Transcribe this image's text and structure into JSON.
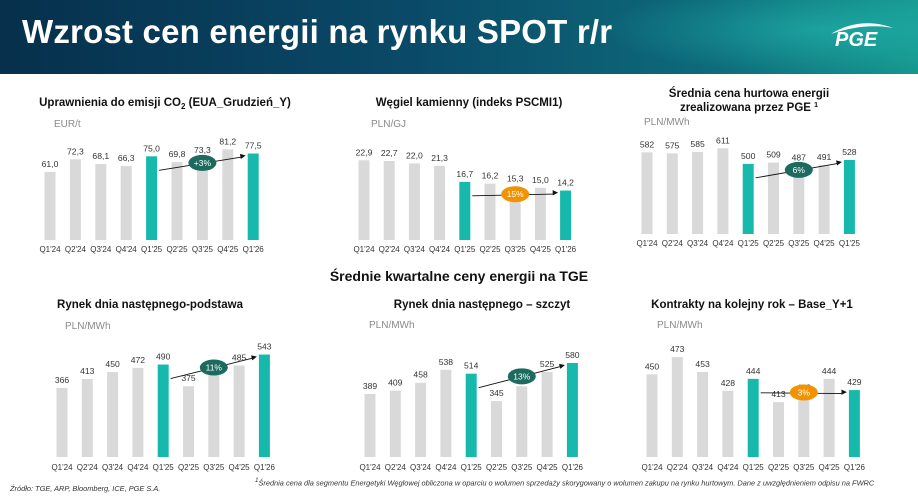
{
  "header": {
    "title": "Wzrost cen energii na rynku SPOT r/r",
    "logo_text": "PGE"
  },
  "colors": {
    "bar_gray": "#d9d9d9",
    "bar_teal": "#17b9ad",
    "badge_green": "#1d6b5f",
    "badge_orange": "#f39200"
  },
  "section_title": "Średnie kwartalne ceny energii na TGE",
  "footer": {
    "source": "Źródło: TGE, ARP, Bloomberg, ICE, PGE S.A.",
    "footnote_mark": "1",
    "footnote_text": "Średnia cena dla segmentu Energetyki Węglowej obliczona w oparciu o wolumen sprzedaży skorygowany o wolumen zakupu na rynku hurtowym. Dane z uwzględnieniem odpisu na FWRC"
  },
  "chart_data": [
    {
      "id": "co2",
      "type": "bar",
      "title": "Uprawnienia do emisji CO",
      "title_sub": "2",
      "title_end": " (EUA_Grudzień_Y)",
      "ylabel": "EUR/t",
      "categories": [
        "Q1'24",
        "Q2'24",
        "Q3'24",
        "Q4'24",
        "Q1'25",
        "Q2'25",
        "Q3'25",
        "Q4'25",
        "Q1'26"
      ],
      "values": [
        61.0,
        72.3,
        68.1,
        66.3,
        75.0,
        69.8,
        73.3,
        81.2,
        77.5
      ],
      "labels": [
        "61,0",
        "72,3",
        "68,1",
        "66,3",
        "75,0",
        "69,8",
        "73,3",
        "81,2",
        "77,5"
      ],
      "highlight": [
        4,
        8
      ],
      "ylim": [
        0,
        95
      ],
      "change": {
        "label": "+3%",
        "color": "green",
        "from": 4,
        "to": 8
      }
    },
    {
      "id": "coal",
      "type": "bar",
      "title": "Węgiel kamienny (indeks PSCMI1)",
      "ylabel": "PLN/GJ",
      "categories": [
        "Q1'24",
        "Q2'24",
        "Q3'24",
        "Q4'24",
        "Q1'25",
        "Q2'25",
        "Q3'25",
        "Q4'25",
        "Q1'26"
      ],
      "values": [
        22.9,
        22.7,
        22.0,
        21.3,
        16.7,
        16.2,
        15.3,
        15.0,
        14.2
      ],
      "labels": [
        "22,9",
        "22,7",
        "22,0",
        "21,3",
        "16,7",
        "16,2",
        "15,3",
        "15,0",
        "14,2"
      ],
      "highlight": [
        4,
        8
      ],
      "ylim": [
        0,
        27
      ],
      "change": {
        "label": "15%",
        "color": "orange",
        "from": 4,
        "to": 8
      }
    },
    {
      "id": "wholesale",
      "type": "bar",
      "title": "Średnia cena hurtowa energii",
      "title_line2": "zrealizowana przez PGE",
      "title_sup": "1",
      "ylabel": "PLN/MWh",
      "categories": [
        "Q1'24",
        "Q2'24",
        "Q3'24",
        "Q4'24",
        "Q1'25",
        "Q2'25",
        "Q3'25",
        "Q4'25",
        "Q1'25"
      ],
      "values": [
        582,
        575,
        585,
        611,
        500,
        509,
        487,
        491,
        528
      ],
      "labels": [
        "582",
        "575",
        "585",
        "611",
        "500",
        "509",
        "487",
        "491",
        "528"
      ],
      "highlight": [
        4,
        8
      ],
      "ylim": [
        0,
        720
      ],
      "change": {
        "label": "6%",
        "color": "green",
        "from": 4,
        "to": 8
      }
    },
    {
      "id": "base",
      "type": "bar",
      "title": "Rynek dnia następnego-podstawa",
      "ylabel": "PLN/MWh",
      "categories": [
        "Q1'24",
        "Q2'24",
        "Q3'24",
        "Q4'24",
        "Q1'25",
        "Q2'25",
        "Q3'25",
        "Q4'25",
        "Q1'26"
      ],
      "values": [
        366,
        413,
        450,
        472,
        490,
        375,
        435,
        485,
        543
      ],
      "labels": [
        "366",
        "413",
        "450",
        "472",
        "490",
        "375",
        "435",
        "485",
        "543"
      ],
      "highlight": [
        4,
        8
      ],
      "ylim": [
        0,
        620
      ],
      "change": {
        "label": "11%",
        "color": "green",
        "from": 4,
        "to": 8
      }
    },
    {
      "id": "peak",
      "type": "bar",
      "title": "Rynek dnia następnego – szczyt",
      "ylabel": "PLN/MWh",
      "categories": [
        "Q1'24",
        "Q2'24",
        "Q3'24",
        "Q4'24",
        "Q1'25",
        "Q2'25",
        "Q3'25",
        "Q4'25",
        "Q1'26"
      ],
      "values": [
        389,
        409,
        458,
        538,
        514,
        345,
        436,
        525,
        580
      ],
      "labels": [
        "389",
        "409",
        "458",
        "538",
        "514",
        "345",
        "436",
        "525",
        "580"
      ],
      "highlight": [
        4,
        8
      ],
      "ylim": [
        0,
        660
      ],
      "change": {
        "label": "13%",
        "color": "green",
        "from": 4,
        "to": 8
      }
    },
    {
      "id": "yplus1",
      "type": "bar",
      "title": "Kontrakty na kolejny rok – Base_Y+1",
      "ylabel": "PLN/MWh",
      "categories": [
        "Q1'24",
        "Q2'24",
        "Q3'24",
        "Q4'24",
        "Q1'25",
        "Q2'25",
        "Q3'25",
        "Q4'25",
        "Q1'26"
      ],
      "values": [
        450,
        473,
        453,
        428,
        444,
        413,
        422,
        444,
        429
      ],
      "labels": [
        "450",
        "473",
        "453",
        "428",
        "444",
        "413",
        "422",
        "444",
        "429"
      ],
      "highlight": [
        4,
        8
      ],
      "ylim": [
        340,
        485
      ],
      "change": {
        "label": "3%",
        "color": "orange",
        "from": 4,
        "to": 8
      }
    }
  ]
}
